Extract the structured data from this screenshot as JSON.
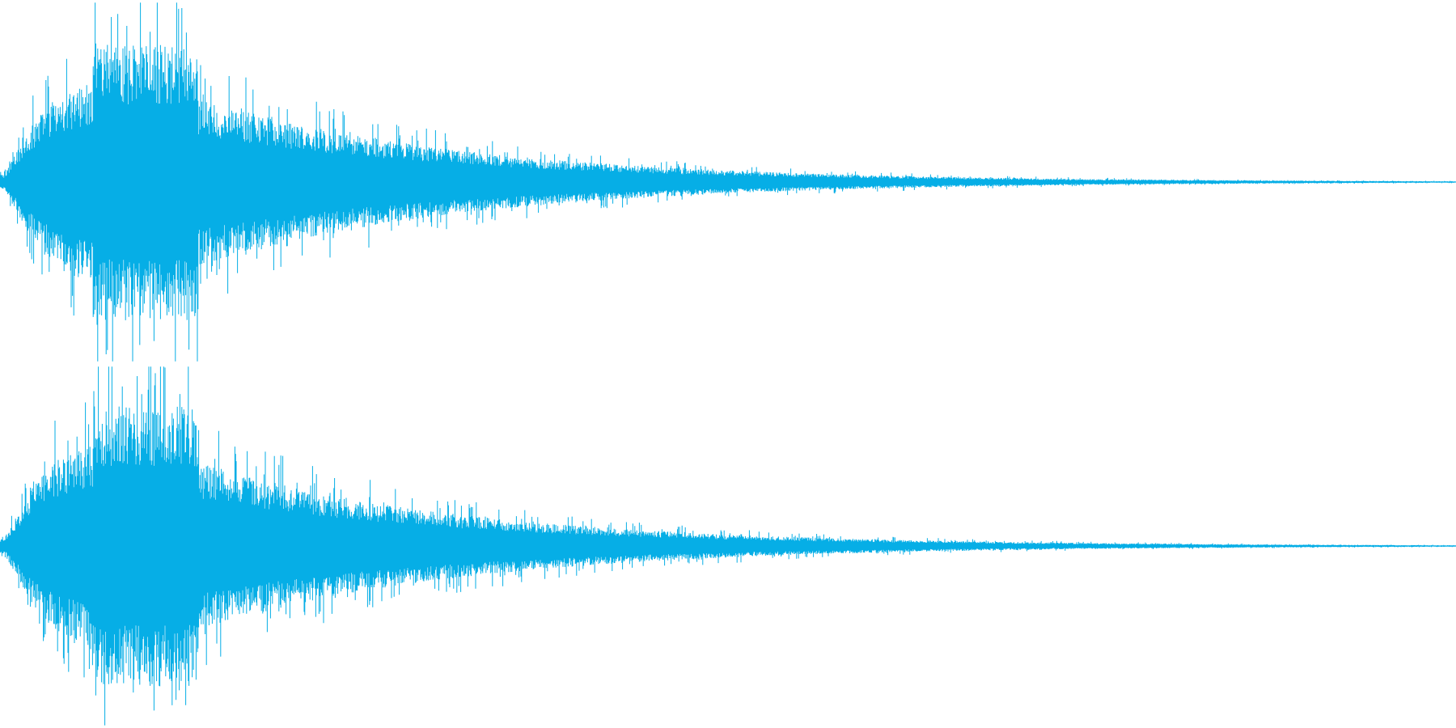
{
  "waveform": {
    "color": "#06aee6",
    "channels": [
      {
        "id": "left"
      },
      {
        "id": "right"
      }
    ]
  }
}
